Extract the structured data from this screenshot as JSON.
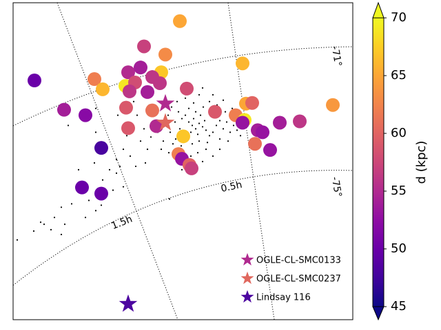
{
  "chart_data": {
    "type": "scatter",
    "xlim": [
      0,
      493
    ],
    "ylim": [
      0,
      465
    ],
    "colormap": "plasma",
    "clim": [
      45,
      70
    ],
    "colorbar": {
      "label": "d (kpc)",
      "ticks": [
        45,
        50,
        55,
        60,
        65,
        70
      ]
    },
    "clusters": {
      "x": [
        242,
        221,
        190,
        333,
        31,
        118,
        130,
        167,
        185,
        215,
        202,
        163,
        177,
        169,
        195,
        213,
        252,
        74,
        105,
        164,
        202,
        167,
        208,
        293,
        323,
        338,
        347,
        336,
        333,
        355,
        362,
        387,
        416,
        464,
        351,
        373,
        247,
        128,
        240,
        245,
        256,
        259,
        100,
        128
      ],
      "y": [
        438,
        389,
        401,
        376,
        351,
        353,
        338,
        363,
        370,
        363,
        356,
        343,
        348,
        335,
        334,
        347,
        339,
        308,
        300,
        311,
        307,
        281,
        284,
        305,
        300,
        317,
        318,
        293,
        289,
        278,
        275,
        289,
        291,
        315,
        258,
        249,
        269,
        252,
        243,
        236,
        227,
        222,
        194,
        185
      ],
      "values": [
        65,
        63,
        57,
        66,
        50,
        62,
        66,
        55,
        54,
        67,
        56,
        69,
        58,
        56,
        54,
        56,
        58,
        54,
        52,
        59,
        61,
        59,
        55,
        59,
        62,
        65,
        60,
        69,
        53,
        54,
        53,
        54,
        56,
        64,
        61,
        53,
        67,
        48,
        62,
        53,
        60,
        57,
        50,
        50
      ]
    },
    "field_stars": {
      "color": "#000000",
      "x": [
        255,
        260,
        265,
        270,
        275,
        262,
        250,
        245,
        258,
        268,
        280,
        285,
        290,
        278,
        272,
        265,
        255,
        240,
        235,
        242,
        248,
        252,
        260,
        270,
        282,
        295,
        300,
        305,
        310,
        315,
        298,
        288,
        276,
        262,
        250,
        238,
        230,
        225,
        220,
        228,
        236,
        244,
        232,
        226,
        218,
        210,
        205,
        200,
        215,
        300,
        312,
        320,
        325,
        330,
        322,
        308,
        296,
        285,
        270,
        258,
        246,
        275,
        290,
        305,
        318,
        190,
        185,
        195,
        180,
        175,
        198,
        188,
        280,
        268,
        290,
        300,
        275,
        258,
        160,
        170,
        155,
        165,
        152,
        120,
        80,
        150,
        140,
        130,
        145,
        128,
        110,
        100,
        95,
        118,
        85,
        70,
        60,
        75,
        45,
        40,
        55,
        70,
        30,
        6,
        120,
        105,
        128,
        160,
        150,
        178,
        192,
        245,
        227,
        120
      ],
      "y": [
        290,
        285,
        280,
        288,
        283,
        295,
        300,
        295,
        275,
        272,
        278,
        270,
        275,
        292,
        300,
        305,
        310,
        305,
        290,
        280,
        270,
        262,
        258,
        262,
        260,
        285,
        292,
        280,
        290,
        275,
        300,
        305,
        312,
        318,
        325,
        320,
        312,
        300,
        290,
        275,
        265,
        255,
        258,
        245,
        262,
        275,
        292,
        268,
        250,
        265,
        262,
        285,
        278,
        270,
        295,
        305,
        315,
        320,
        330,
        335,
        340,
        340,
        330,
        322,
        310,
        280,
        262,
        250,
        300,
        320,
        315,
        330,
        250,
        245,
        240,
        250,
        232,
        240,
        250,
        240,
        225,
        270,
        300,
        310,
        285,
        235,
        220,
        205,
        190,
        180,
        175,
        195,
        220,
        230,
        170,
        165,
        150,
        140,
        140,
        143,
        132,
        125,
        130,
        117,
        160,
        150,
        168,
        195,
        215,
        225,
        230,
        220,
        177,
        275
      ]
    },
    "markers": [
      {
        "name": "OGLE-CL-SMC0133",
        "color": "#b02a8f",
        "x": 221,
        "y": 317
      },
      {
        "name": "OGLE-CL-SMC0237",
        "color": "#e0685e",
        "x": 221,
        "y": 289
      },
      {
        "name": "Lindsay 116",
        "color": "#4c06a0",
        "x": 167,
        "y": 23
      }
    ],
    "legend": "lower right",
    "annotations": [
      {
        "text": "-71°"
      },
      {
        "text": "-75°"
      },
      {
        "text": "0.5h"
      },
      {
        "text": "1.5h"
      }
    ]
  }
}
